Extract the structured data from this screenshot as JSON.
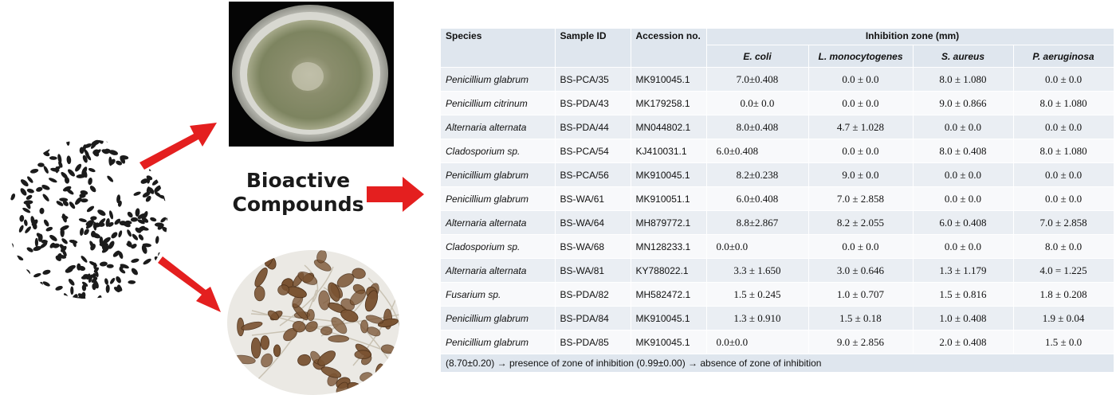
{
  "graphic": {
    "heading_lines": [
      "Bioactive",
      "Compounds"
    ],
    "seed_color": "#1b1b1b",
    "arrow_color": "#e41f1f",
    "petri_colony_color": "#7d8460",
    "spore_color": "#7a5332"
  },
  "table": {
    "headers": {
      "species": "Species",
      "sample_id": "Sample ID",
      "accession": "Accession no.",
      "inhibition_zone": "Inhibition zone (mm)",
      "organisms": [
        "E. coli",
        "L. monocytogenes",
        "S. aureus",
        "P. aeruginosa"
      ]
    },
    "rows": [
      {
        "species": "Penicillium glabrum",
        "sample_id": "BS-PCA/35",
        "accession": "MK910045.1",
        "ecoli": "7.0±0.408",
        "lmono": "0.0 ± 0.0",
        "saureus": "8.0 ± 1.080",
        "paeru": "0.0 ± 0.0"
      },
      {
        "species": "Penicillium citrinum",
        "sample_id": "BS-PDA/43",
        "accession": "MK179258.1",
        "ecoli": "0.0± 0.0",
        "lmono": "0.0 ± 0.0",
        "saureus": "9.0 ± 0.866",
        "paeru": "8.0 ± 1.080"
      },
      {
        "species": "Alternaria alternata",
        "sample_id": "BS-PDA/44",
        "accession": "MN044802.1",
        "ecoli": "8.0±0.408",
        "lmono": "4.7 ± 1.028",
        "saureus": "0.0 ± 0.0",
        "paeru": "0.0 ± 0.0"
      },
      {
        "species": "Cladosporium sp.",
        "sample_id": "BS-PCA/54",
        "accession": "KJ410031.1",
        "ecoli": "6.0±0.408",
        "lmono": "0.0 ± 0.0",
        "saureus": "8.0 ± 0.408",
        "paeru": "8.0 ± 1.080"
      },
      {
        "species": "Penicillium glabrum",
        "sample_id": "BS-PCA/56",
        "accession": "MK910045.1",
        "ecoli": "8.2±0.238",
        "lmono": "9.0 ± 0.0",
        "saureus": "0.0 ± 0.0",
        "paeru": "0.0 ± 0.0"
      },
      {
        "species": "Penicillium glabrum",
        "sample_id": "BS-WA/61",
        "accession": "MK910051.1",
        "ecoli": "6.0±0.408",
        "lmono": "7.0 ± 2.858",
        "saureus": "0.0 ± 0.0",
        "paeru": "0.0 ± 0.0"
      },
      {
        "species": "Alternaria alternata",
        "sample_id": "BS-WA/64",
        "accession": "MH879772.1",
        "ecoli": "8.8±2.867",
        "lmono": "8.2 ± 2.055",
        "saureus": "6.0 ± 0.408",
        "paeru": "7.0 ± 2.858"
      },
      {
        "species": "Cladosporium sp.",
        "sample_id": "BS-WA/68",
        "accession": "MN128233.1",
        "ecoli": "0.0±0.0",
        "lmono": "0.0 ± 0.0",
        "saureus": "0.0 ± 0.0",
        "paeru": "8.0 ± 0.0"
      },
      {
        "species": "Alternaria alternata",
        "sample_id": "BS-WA/81",
        "accession": "KY788022.1",
        "ecoli": "3.3 ± 1.650",
        "lmono": "3.0 ± 0.646",
        "saureus": "1.3 ± 1.179",
        "paeru": "4.0 = 1.225"
      },
      {
        "species": "Fusarium sp.",
        "sample_id": "BS-PDA/82",
        "accession": "MH582472.1",
        "ecoli": "1.5 ± 0.245",
        "lmono": "1.0 ± 0.707",
        "saureus": "1.5 ± 0.816",
        "paeru": "1.8 ± 0.208"
      },
      {
        "species": "Penicillium glabrum",
        "sample_id": "BS-PDA/84",
        "accession": "MK910045.1",
        "ecoli": "1.3 ± 0.910",
        "lmono": "1.5 ± 0.18",
        "saureus": "1.0 ± 0.408",
        "paeru": "1.9 ± 0.04"
      },
      {
        "species": "Penicillium glabrum",
        "sample_id": "BS-PDA/85",
        "accession": "MK910045.1",
        "ecoli": "0.0±0.0",
        "lmono": "9.0 ± 2.856",
        "saureus": "2.0 ± 0.408",
        "paeru": "1.5 ± 0.0"
      }
    ],
    "footnote": "(8.70±0.20) → presence of zone of inhibition (0.99±0.00) → absence of zone of inhibition"
  }
}
